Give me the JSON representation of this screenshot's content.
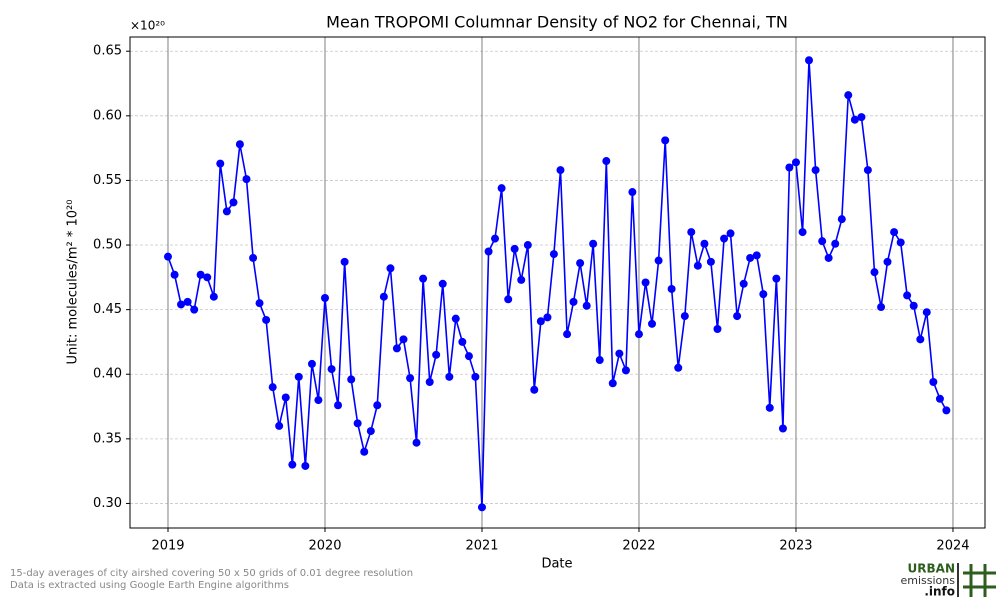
{
  "chart_data": {
    "type": "line",
    "title": "Mean TROPOMI Columnar Density of NO2 for Chennai, TN",
    "offset_label": "×10²⁰",
    "x_label": "Date",
    "y_label": "Unit: molecules/m² * 10²⁰",
    "x": [
      2019.0,
      2019.042,
      2019.083,
      2019.125,
      2019.167,
      2019.208,
      2019.25,
      2019.292,
      2019.333,
      2019.375,
      2019.417,
      2019.458,
      2019.5,
      2019.542,
      2019.583,
      2019.625,
      2019.667,
      2019.708,
      2019.75,
      2019.792,
      2019.833,
      2019.875,
      2019.917,
      2019.958,
      2020.0,
      2020.042,
      2020.083,
      2020.125,
      2020.167,
      2020.208,
      2020.25,
      2020.292,
      2020.333,
      2020.375,
      2020.417,
      2020.458,
      2020.5,
      2020.542,
      2020.583,
      2020.625,
      2020.667,
      2020.708,
      2020.75,
      2020.792,
      2020.833,
      2020.875,
      2020.917,
      2020.958,
      2021.0,
      2021.042,
      2021.083,
      2021.125,
      2021.167,
      2021.208,
      2021.25,
      2021.292,
      2021.333,
      2021.375,
      2021.417,
      2021.458,
      2021.5,
      2021.542,
      2021.583,
      2021.625,
      2021.667,
      2021.708,
      2021.75,
      2021.792,
      2021.833,
      2021.875,
      2021.917,
      2021.958,
      2022.0,
      2022.042,
      2022.083,
      2022.125,
      2022.167,
      2022.208,
      2022.25,
      2022.292,
      2022.333,
      2022.375,
      2022.417,
      2022.458,
      2022.5,
      2022.542,
      2022.583,
      2022.625,
      2022.667,
      2022.708,
      2022.75,
      2022.792,
      2022.833,
      2022.875,
      2022.917,
      2022.958,
      2023.0,
      2023.042,
      2023.083,
      2023.125,
      2023.167,
      2023.208,
      2023.25,
      2023.292,
      2023.333,
      2023.375,
      2023.417,
      2023.458,
      2023.5,
      2023.542,
      2023.583,
      2023.625,
      2023.667,
      2023.708,
      2023.75,
      2023.792,
      2023.833,
      2023.875,
      2023.917,
      2023.958
    ],
    "series": [
      {
        "color": "#0000ff",
        "values": [
          0.491,
          0.477,
          0.454,
          0.456,
          0.45,
          0.477,
          0.475,
          0.46,
          0.563,
          0.526,
          0.533,
          0.578,
          0.551,
          0.49,
          0.455,
          0.442,
          0.39,
          0.36,
          0.382,
          0.33,
          0.398,
          0.329,
          0.408,
          0.38,
          0.459,
          0.404,
          0.376,
          0.487,
          0.396,
          0.362,
          0.34,
          0.356,
          0.376,
          0.46,
          0.482,
          0.42,
          0.427,
          0.397,
          0.347,
          0.474,
          0.394,
          0.415,
          0.47,
          0.398,
          0.443,
          0.425,
          0.414,
          0.398,
          0.297,
          0.495,
          0.505,
          0.544,
          0.458,
          0.497,
          0.473,
          0.5,
          0.388,
          0.441,
          0.444,
          0.493,
          0.558,
          0.431,
          0.456,
          0.486,
          0.453,
          0.501,
          0.411,
          0.565,
          0.393,
          0.416,
          0.403,
          0.541,
          0.431,
          0.471,
          0.439,
          0.488,
          0.581,
          0.466,
          0.405,
          0.445,
          0.51,
          0.484,
          0.501,
          0.487,
          0.435,
          0.505,
          0.509,
          0.445,
          0.47,
          0.49,
          0.492,
          0.462,
          0.374,
          0.474,
          0.358,
          0.56,
          0.564,
          0.51,
          0.643,
          0.558,
          0.503,
          0.49,
          0.501,
          0.52,
          0.616,
          0.597,
          0.599,
          0.558,
          0.479,
          0.452,
          0.487,
          0.51,
          0.502,
          0.461,
          0.453,
          0.427,
          0.448,
          0.394,
          0.381,
          0.372
        ]
      }
    ],
    "xlim": [
      2018.758,
      2024.204
    ],
    "xticks": [
      2019,
      2020,
      2021,
      2022,
      2023,
      2024
    ],
    "ylim": [
      0.281,
      0.661
    ],
    "yticks": [
      {
        "value": 0.3,
        "label": "0.30"
      },
      0.35,
      {
        "value": 0.4,
        "label": "0.40"
      },
      0.45,
      {
        "value": 0.5,
        "label": "0.50"
      },
      0.55,
      {
        "value": 0.6,
        "label": "0.60"
      },
      0.65
    ],
    "grid": true
  },
  "footer": {
    "notes": [
      "15-day averages of city airshed covering 50 x 50 grids of 0.01 degree resolution",
      "Data is extracted using Google Earth Engine algorithms"
    ],
    "logo": [
      "URBAN",
      "emissions",
      ".info"
    ]
  }
}
